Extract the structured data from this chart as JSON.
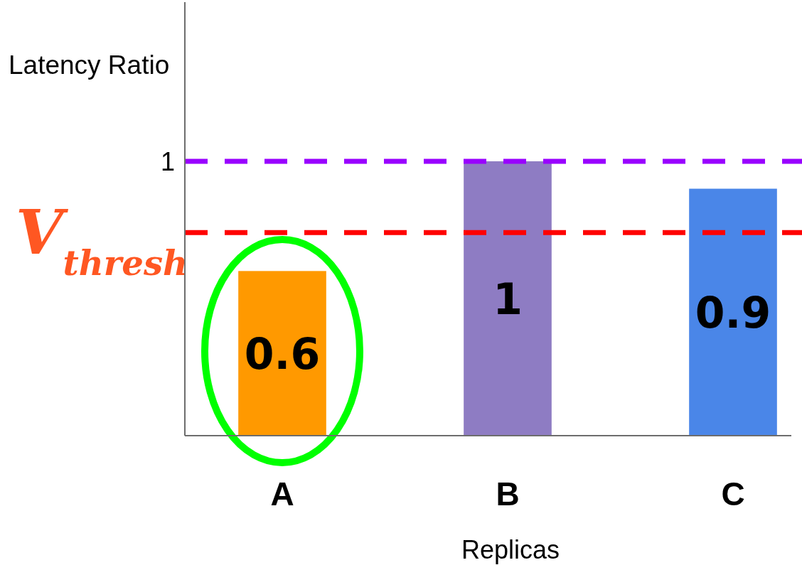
{
  "chart_data": {
    "type": "bar",
    "xlabel": "Replicas",
    "ylabel": "Latency Ratio",
    "categories": [
      "A",
      "B",
      "C"
    ],
    "values": [
      0.6,
      1,
      0.9
    ],
    "colors": [
      "#ff9900",
      "#8e7cc3",
      "#4a86e8"
    ],
    "ylim": [
      0,
      1.58
    ],
    "yticks": [
      1
    ],
    "data_labels": true,
    "ref_lines": [
      {
        "axis": "y",
        "value": 1,
        "color": "#9900ff",
        "line_style": "dashed"
      },
      {
        "axis": "y",
        "value": 0.74,
        "label": "V$_{thresh}$",
        "color": "#ff0000",
        "line_style": "dashed"
      }
    ]
  }
}
